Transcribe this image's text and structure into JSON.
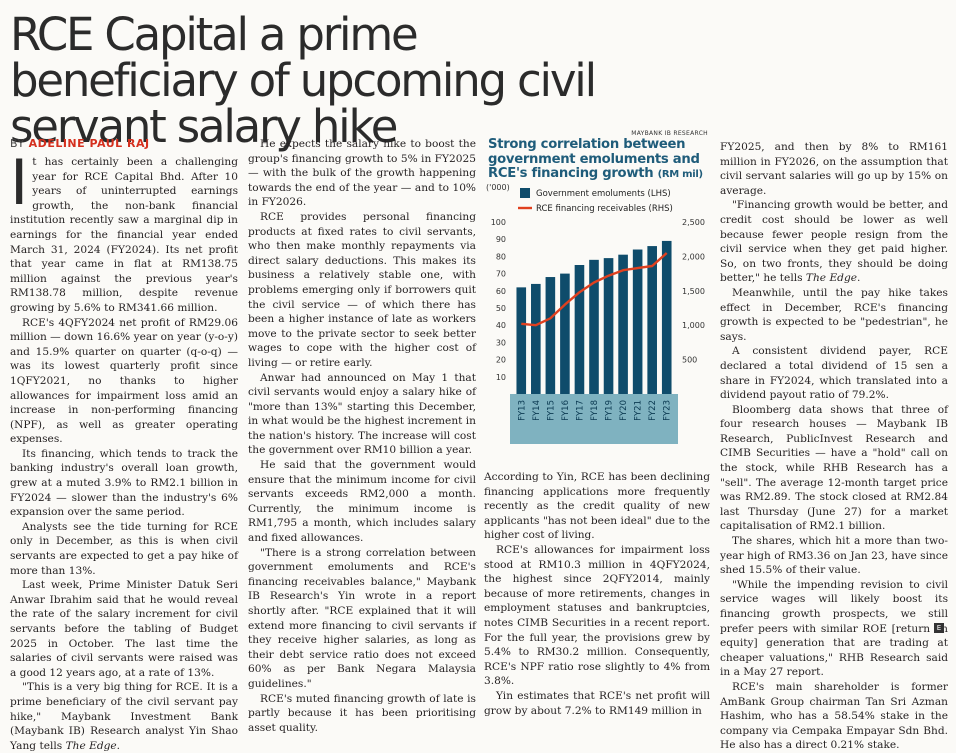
{
  "headline": "RCE Capital a prime beneficiary of upcoming civil servant salary hike",
  "byline": {
    "prefix": "BY",
    "author": "ADELINE PAUL RAJ"
  },
  "dropcap": "I",
  "columns": {
    "c1": [
      "t has certainly been a challenging year for RCE Capital Bhd. After 10 years of uninterrupted earnings growth, the non-bank financial institution recently saw a marginal dip in earnings for the financial year ended March 31, 2024 (FY2024). Its net profit that year came in flat at RM138.75 million against the previous year's RM138.78 million, despite revenue growing by 5.6% to RM341.66 million.",
      "RCE's 4QFY2024 net profit of RM29.06 million — down 16.6% year on year (y-o-y) and 15.9% quarter on quarter (q-o-q) — was its lowest quarterly profit since 1QFY2021, no thanks to higher allowances for impairment loss amid an increase in non-performing financing (NPF), as well as greater operating expenses.",
      "Its financing, which tends to track the banking industry's overall loan growth, grew at a muted 3.9% to RM2.1 billion in FY2024 — slower than the industry's 6% expansion over the same period.",
      "Analysts see the tide turning for RCE only in December, as this is when civil servants are expected to get a pay hike of more than 13%.",
      "Last week, Prime Minister Datuk Seri Anwar Ibrahim said that he would reveal the rate of the salary increment for civil servants before the tabling of Budget 2025 in October. The last time the salaries of civil servants were raised was a good 12 years ago, at a rate of 13%.",
      "\"This is a very big thing for RCE. It is a prime beneficiary of the civil servant pay hike,\" Maybank Investment Bank (Maybank IB) Research analyst Yin Shao Yang tells The Edge."
    ],
    "c2": [
      "He expects the salary hike to boost the group's financing growth to 5% in FY2025 — with the bulk of the growth happening towards the end of the year — and to 10% in FY2026.",
      "RCE provides personal financing products at fixed rates to civil servants, who then make monthly repayments via direct salary deductions. This makes its business a relatively stable one, with problems emerging only if borrowers quit the civil service — of which there has been a higher instance of late as workers move to the private sector to seek better wages to cope with the higher cost of living — or retire early.",
      "Anwar had announced on May 1 that civil servants would enjoy a salary hike of \"more than 13%\" starting this December, in what would be the highest increment in the nation's history. The increase will cost the government over RM10 billion a year.",
      "He said that the government would ensure that the minimum income for civil servants exceeds RM2,000 a month. Currently, the minimum income is RM1,795 a month, which includes salary and fixed allowances.",
      "\"There is a strong correlation between government emoluments and RCE's financing receivables balance,\" Maybank IB Research's Yin wrote in a report shortly after. \"RCE explained that it will extend more financing to civil servants if they receive higher salaries, as long as their debt service ratio does not exceed 60% as per Bank Negara Malaysia guidelines.\"",
      "RCE's muted financing growth of late is partly because it has been prioritising asset quality."
    ],
    "c3": [
      "According to Yin, RCE has been declining financing applications more frequently recently as the credit quality of new applicants \"has not been ideal\" due to the higher cost of living.",
      "RCE's allowances for impairment loss stood at RM10.3 million in 4QFY2024, the highest since 2QFY2014, mainly because of more retirements, changes in employment statuses and bankruptcies, notes CIMB Securities in a recent report. For the full year, the provisions grew by 5.4% to RM30.2 million. Consequently, RCE's NPF ratio rose slightly to 4% from 3.8%.",
      "Yin estimates that RCE's net profit will grow by about 7.2% to RM149 million in"
    ],
    "c4": [
      "FY2025, and then by 8% to RM161 million in FY2026, on the assumption that civil servant salaries will go up by 15% on average.",
      "\"Financing growth would be better, and credit cost should be lower as well because fewer people resign from the civil service when they get paid higher. So, on two fronts, they should be doing better,\" he tells The Edge.",
      "Meanwhile, until the pay hike takes effect in December, RCE's financing growth is expected to be \"pedestrian\", he says.",
      "A consistent dividend payer, RCE declared a total dividend of 15 sen a share in FY2024, which translated into a dividend payout ratio of 79.2%.",
      "Bloomberg data shows that three of four research houses — Maybank IB Research, PublicInvest Research and CIMB Securities — have a \"hold\" call on the stock, while RHB Research has a \"sell\". The average 12-month target price was RM2.89. The stock closed at RM2.84 last Thursday (June 27) for a market capitalisation of RM2.1 billion.",
      "The shares, which hit a more than two-year high of RM3.36 on Jan 23, have since shed 15.5% of their value.",
      "\"While the impending revision to civil service wages will likely boost its financing growth prospects, we still prefer peers with similar ROE [return on equity] generation that are trading at cheaper valuations,\" RHB Research said in a May 27 report.",
      "RCE's main shareholder is former AmBank Group chairman Tan Sri Azman Hashim, who has a 58.54% stake in the company via Cempaka Empayar Sdn Bhd. He also has a direct 0.21% stake."
    ]
  },
  "end_mark": "E",
  "chart_data": {
    "type": "bar",
    "source": "MAYBANK IB RESEARCH",
    "title": "Strong correlation between government emoluments and RCE's financing growth",
    "title_unit": "(RM mil)",
    "categories": [
      "FY13",
      "FY14",
      "FY15",
      "FY16",
      "FY17",
      "FY18",
      "FY19",
      "FY20",
      "FY21",
      "FY22",
      "FY23"
    ],
    "series": [
      {
        "name": "Government emoluments (LHS)",
        "kind": "bar",
        "axis": "left",
        "color": "#0f4c6b",
        "values": [
          62,
          64,
          68,
          70,
          75,
          78,
          79,
          81,
          84,
          86,
          89
        ]
      },
      {
        "name": "RCE financing receivables (RHS)",
        "kind": "line",
        "axis": "right",
        "color": "#e0401f",
        "values": [
          1020,
          1000,
          1100,
          1300,
          1480,
          1620,
          1720,
          1800,
          1830,
          1860,
          2050
        ]
      }
    ],
    "left_axis": {
      "label": "('000)",
      "ticks": [
        10,
        20,
        30,
        40,
        50,
        60,
        70,
        80,
        90,
        100
      ],
      "range": [
        0,
        100
      ]
    },
    "right_axis": {
      "ticks": [
        "500",
        "1,000",
        "1,500",
        "2,000",
        "2,500"
      ],
      "tick_values": [
        500,
        1000,
        1500,
        2000,
        2500
      ],
      "range": [
        0,
        2500
      ]
    },
    "band_color": "#7fb2c0",
    "legend_position": "top"
  }
}
